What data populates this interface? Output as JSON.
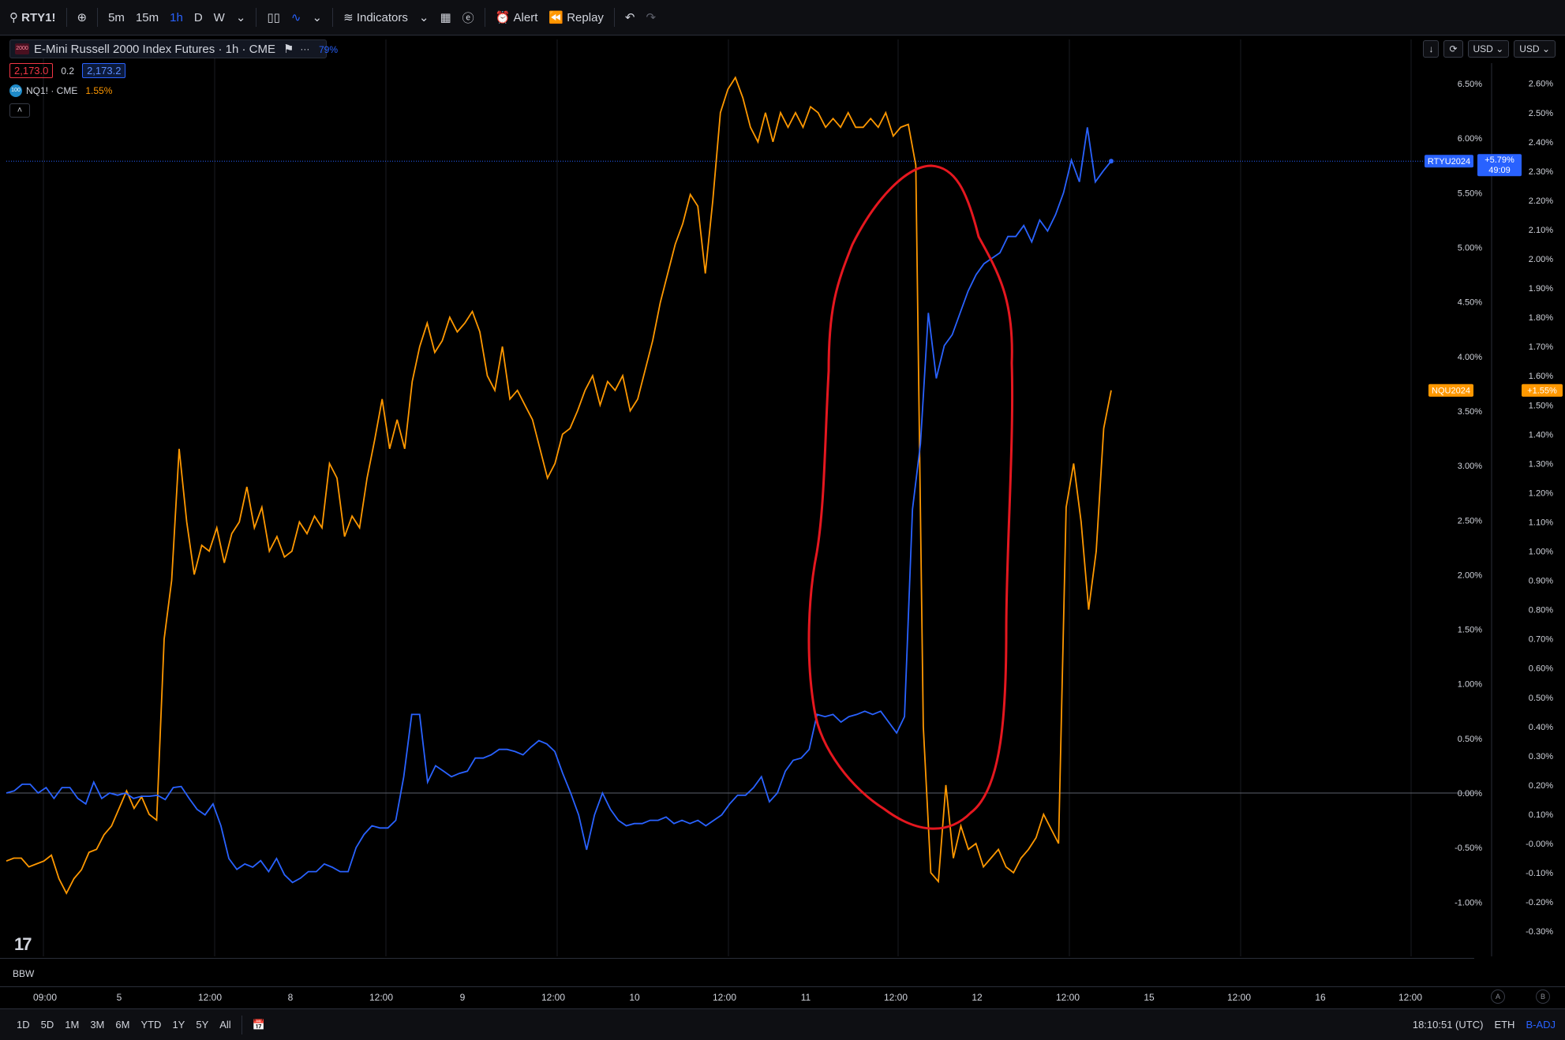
{
  "toolbar": {
    "symbol": "RTY1!",
    "intervals": [
      "5m",
      "15m",
      "1h",
      "D",
      "W"
    ],
    "active_interval": "1h",
    "indicators_label": "Indicators",
    "alert_label": "Alert",
    "replay_label": "Replay"
  },
  "legend": {
    "logo_text": "2000",
    "title": "E-Mini Russell 2000 Index Futures · 1h · CME",
    "pct_partial": "79%",
    "bid": "2,173.0",
    "spread": "0.2",
    "ask": "2,173.2",
    "compare_logo": "100",
    "compare_symbol": "NQ1! · CME",
    "compare_pct": "1.55%",
    "collapse_icon": "chevron-up-icon"
  },
  "top_right": {
    "currency_1": "USD",
    "currency_2": "USD"
  },
  "colors": {
    "rty": "#2962ff",
    "nq": "#ff9800",
    "annotation": "#e5171f",
    "background": "#000000",
    "grid": "#1a1c22"
  },
  "labels": {
    "rty_ticker": "RTYU2024",
    "rty_pct": "+5.79%",
    "rty_countdown": "49:09",
    "nq_ticker": "NQU2024",
    "nq_pct": "+1.55%"
  },
  "bottom_pane": {
    "indicator": "BBW"
  },
  "time_axis": [
    "09:00",
    "5",
    "12:00",
    "8",
    "12:00",
    "9",
    "12:00",
    "10",
    "12:00",
    "11",
    "12:00",
    "12",
    "12:00",
    "15",
    "12:00",
    "16",
    "12:00"
  ],
  "bottom_bar": {
    "ranges": [
      "1D",
      "5D",
      "1M",
      "3M",
      "6M",
      "YTD",
      "1Y",
      "5Y",
      "All"
    ],
    "clock": "18:10:51 (UTC)",
    "session": "ETH",
    "adjust": "B-ADJ",
    "corner_a": "A",
    "corner_b": "B"
  },
  "chart_data": {
    "type": "line",
    "left_axis": [
      "6.50%",
      "6.00%",
      "5.50%",
      "5.00%",
      "4.50%",
      "4.00%",
      "3.50%",
      "3.00%",
      "2.50%",
      "2.00%",
      "1.50%",
      "1.00%",
      "0.50%",
      "0.00%",
      "-0.50%",
      "-1.00%"
    ],
    "right_axis": [
      "2.60%",
      "2.50%",
      "2.40%",
      "2.30%",
      "2.20%",
      "2.10%",
      "2.00%",
      "1.90%",
      "1.80%",
      "1.70%",
      "1.60%",
      "1.50%",
      "1.40%",
      "1.30%",
      "1.20%",
      "1.10%",
      "1.00%",
      "0.90%",
      "0.80%",
      "0.70%",
      "0.60%",
      "0.50%",
      "0.40%",
      "0.30%",
      "0.20%",
      "0.10%",
      "-0.00%",
      "-0.10%",
      "-0.20%",
      "-0.30%"
    ],
    "ylim_left": [
      -1.2,
      6.6
    ],
    "ylim_right": [
      -0.32,
      2.63
    ],
    "series": [
      {
        "name": "RTYU2024",
        "axis": "left",
        "values": [
          0.0,
          0.02,
          0.08,
          0.08,
          0.0,
          0.05,
          -0.05,
          0.05,
          0.05,
          -0.05,
          -0.1,
          0.1,
          -0.05,
          0.0,
          -0.02,
          0.0,
          -0.05,
          -0.03,
          -0.03,
          -0.02,
          -0.06,
          0.05,
          0.06,
          -0.05,
          -0.15,
          -0.2,
          -0.1,
          -0.3,
          -0.6,
          -0.7,
          -0.65,
          -0.68,
          -0.62,
          -0.72,
          -0.6,
          -0.75,
          -0.82,
          -0.78,
          -0.72,
          -0.72,
          -0.65,
          -0.68,
          -0.72,
          -0.72,
          -0.5,
          -0.38,
          -0.3,
          -0.32,
          -0.32,
          -0.25,
          0.15,
          0.72,
          0.72,
          0.1,
          0.25,
          0.2,
          0.15,
          0.18,
          0.2,
          0.32,
          0.32,
          0.35,
          0.4,
          0.4,
          0.38,
          0.35,
          0.42,
          0.48,
          0.45,
          0.38,
          0.18,
          0.0,
          -0.2,
          -0.52,
          -0.2,
          0.0,
          -0.15,
          -0.25,
          -0.3,
          -0.28,
          -0.28,
          -0.25,
          -0.25,
          -0.22,
          -0.28,
          -0.25,
          -0.28,
          -0.25,
          -0.3,
          -0.25,
          -0.2,
          -0.1,
          -0.02,
          -0.02,
          0.05,
          0.15,
          -0.08,
          0.0,
          0.2,
          0.3,
          0.32,
          0.4,
          0.72,
          0.7,
          0.72,
          0.65,
          0.7,
          0.72,
          0.75,
          0.72,
          0.75,
          0.65,
          0.55,
          0.7,
          2.6,
          3.2,
          4.4,
          3.8,
          4.1,
          4.2,
          4.4,
          4.6,
          4.75,
          4.85,
          4.9,
          4.95,
          5.1,
          5.1,
          5.2,
          5.05,
          5.25,
          5.15,
          5.3,
          5.5,
          5.8,
          5.6,
          6.1,
          5.6,
          5.7,
          5.79
        ]
      },
      {
        "name": "NQU2024",
        "axis": "right",
        "values": [
          -0.06,
          -0.05,
          -0.05,
          -0.08,
          -0.07,
          -0.06,
          -0.04,
          -0.12,
          -0.17,
          -0.12,
          -0.09,
          -0.03,
          -0.02,
          0.03,
          0.06,
          0.12,
          0.18,
          0.12,
          0.16,
          0.1,
          0.08,
          0.7,
          0.9,
          1.35,
          1.1,
          0.92,
          1.02,
          1.0,
          1.08,
          0.96,
          1.06,
          1.1,
          1.22,
          1.08,
          1.15,
          1.0,
          1.05,
          0.98,
          1.0,
          1.1,
          1.06,
          1.12,
          1.08,
          1.3,
          1.25,
          1.05,
          1.12,
          1.08,
          1.25,
          1.38,
          1.52,
          1.35,
          1.45,
          1.35,
          1.58,
          1.7,
          1.78,
          1.68,
          1.72,
          1.8,
          1.75,
          1.78,
          1.82,
          1.75,
          1.6,
          1.55,
          1.7,
          1.52,
          1.55,
          1.5,
          1.45,
          1.35,
          1.25,
          1.3,
          1.4,
          1.42,
          1.48,
          1.55,
          1.6,
          1.5,
          1.58,
          1.55,
          1.6,
          1.48,
          1.52,
          1.62,
          1.72,
          1.85,
          1.95,
          2.05,
          2.12,
          2.22,
          2.18,
          1.95,
          2.2,
          2.5,
          2.58,
          2.62,
          2.55,
          2.45,
          2.4,
          2.5,
          2.4,
          2.5,
          2.45,
          2.5,
          2.45,
          2.52,
          2.5,
          2.45,
          2.48,
          2.45,
          2.5,
          2.45,
          2.45,
          2.48,
          2.45,
          2.5,
          2.42,
          2.45,
          2.46,
          2.32,
          0.4,
          -0.1,
          -0.13,
          0.2,
          -0.05,
          0.06,
          -0.02,
          0.0,
          -0.08,
          -0.05,
          -0.02,
          -0.08,
          -0.1,
          -0.05,
          -0.02,
          0.02,
          0.1,
          0.05,
          0.0,
          1.15,
          1.3,
          1.1,
          0.8,
          1.0,
          1.42,
          1.55
        ]
      }
    ],
    "last": {
      "rty": 5.79,
      "nq": 1.55
    }
  }
}
